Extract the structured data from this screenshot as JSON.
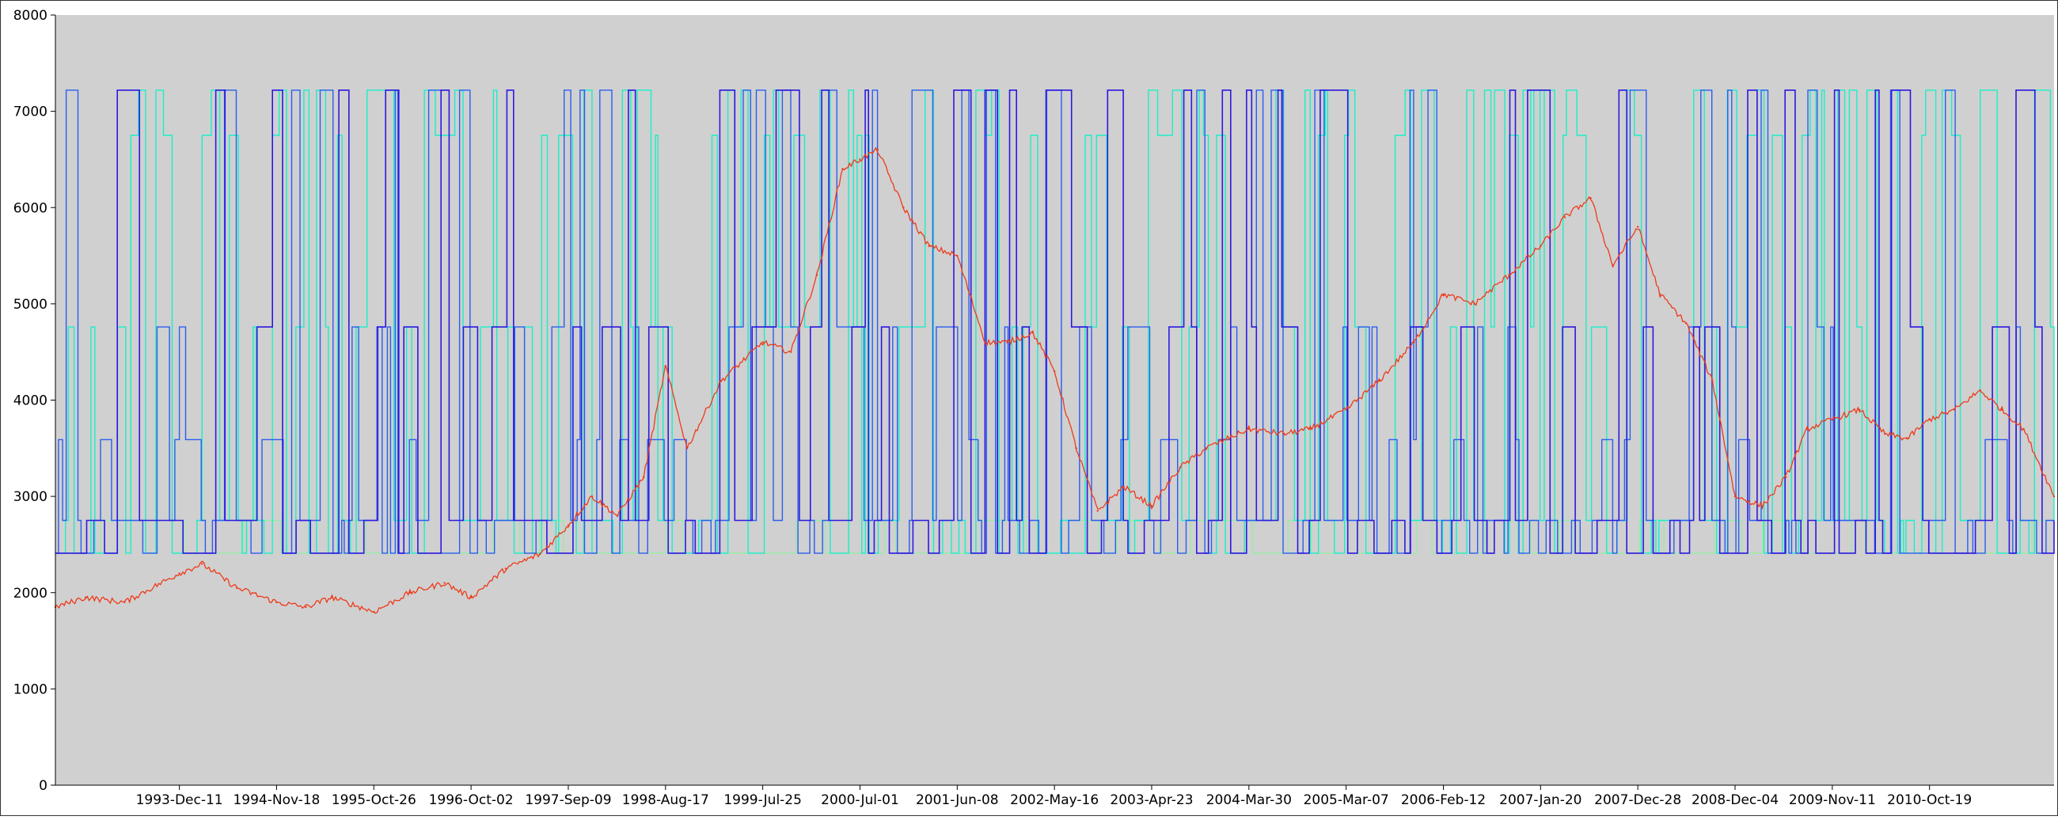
{
  "chart_data": {
    "type": "line",
    "title": "",
    "xlabel": "",
    "ylabel": "",
    "ylim": [
      0,
      8000
    ],
    "yticks": [
      0,
      1000,
      2000,
      3000,
      4000,
      5000,
      6000,
      7000,
      8000
    ],
    "xlim": [
      "1992-10-01",
      "2011-12-31"
    ],
    "xticks": [
      "1993-Dec-11",
      "1994-Nov-18",
      "1995-Oct-26",
      "1996-Oct-02",
      "1997-Sep-09",
      "1998-Aug-17",
      "1999-Jul-25",
      "2000-Jul-01",
      "2001-Jun-08",
      "2002-May-16",
      "2003-Apr-23",
      "2004-Mar-30",
      "2005-Mar-07",
      "2006-Feb-12",
      "2007-Jan-20",
      "2007-Dec-28",
      "2008-Dec-04",
      "2009-Nov-11",
      "2010-Oct-19"
    ],
    "grid": false,
    "legend": "none",
    "background": "#d0d0d0",
    "series": [
      {
        "color": "#ee3a1a",
        "x": [
          "1992-10-01",
          "1993-01-15",
          "1993-06-01",
          "1993-12-11",
          "1994-03-01",
          "1994-07-01",
          "1994-11-18",
          "1995-03-01",
          "1995-06-01",
          "1995-10-26",
          "1996-03-01",
          "1996-07-01",
          "1996-10-02",
          "1997-02-01",
          "1997-06-01",
          "1997-09-09",
          "1997-12-01",
          "1998-03-01",
          "1998-06-01",
          "1998-08-17",
          "1998-11-01",
          "1999-03-01",
          "1999-07-25",
          "1999-11-01",
          "2000-02-01",
          "2000-05-01",
          "2000-07-01",
          "2000-09-01",
          "2000-12-01",
          "2001-03-01",
          "2001-06-08",
          "2001-09-15",
          "2001-12-01",
          "2002-03-01",
          "2002-05-16",
          "2002-08-01",
          "2002-10-15",
          "2003-01-15",
          "2003-04-23",
          "2003-08-01",
          "2003-11-01",
          "2004-03-30",
          "2004-08-01",
          "2004-11-01",
          "2005-03-07",
          "2005-07-01",
          "2005-11-01",
          "2006-02-12",
          "2006-06-01",
          "2006-10-01",
          "2007-01-20",
          "2007-04-15",
          "2007-07-15",
          "2007-10-01",
          "2007-12-28",
          "2008-03-15",
          "2008-06-15",
          "2008-09-15",
          "2008-12-04",
          "2009-03-10",
          "2009-06-01",
          "2009-08-15",
          "2009-11-11",
          "2010-02-15",
          "2010-05-15",
          "2010-08-01",
          "2010-10-19",
          "2011-01-15",
          "2011-04-15",
          "2011-07-01",
          "2011-09-15",
          "2011-12-31"
        ],
        "values": [
          1850,
          1950,
          1900,
          2200,
          2300,
          2050,
          1900,
          1850,
          1950,
          1800,
          2000,
          2100,
          1950,
          2250,
          2400,
          2700,
          3000,
          2800,
          3200,
          4350,
          3500,
          4200,
          4600,
          4500,
          5300,
          6400,
          6500,
          6600,
          6000,
          5600,
          5500,
          4600,
          4600,
          4700,
          4300,
          3500,
          2850,
          3100,
          2900,
          3300,
          3500,
          3700,
          3650,
          3700,
          3900,
          4200,
          4600,
          5100,
          5000,
          5300,
          5600,
          5900,
          6100,
          5400,
          5800,
          5100,
          4800,
          4200,
          3000,
          2900,
          3200,
          3700,
          3800,
          3900,
          3650,
          3600,
          3800,
          3900,
          4100,
          3900,
          3700,
          3000
        ]
      }
    ]
  }
}
